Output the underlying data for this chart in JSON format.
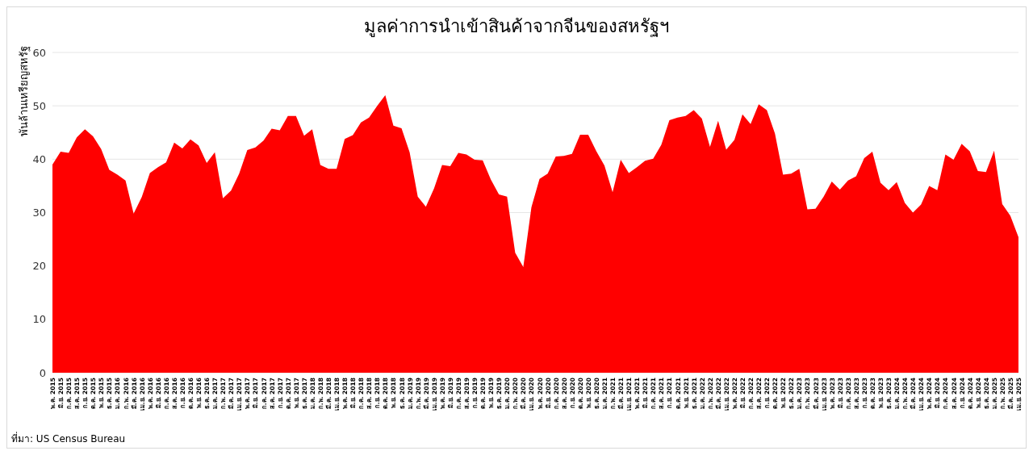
{
  "chart_data": {
    "type": "area",
    "title": "มูลค่าการนำเข้าสินค้าจากจีนของสหรัฐฯ",
    "ylabel": "พันล้านเหรียญสหรัฐ",
    "annotations": [
      "ที่มา: US Census Bureau"
    ],
    "categories": [
      "พ.ค. 2015",
      "มิ.ย. 2015",
      "ก.ค. 2015",
      "ส.ค. 2015",
      "ก.ย. 2015",
      "ต.ค. 2015",
      "พ.ย. 2015",
      "ธ.ค. 2015",
      "ม.ค. 2016",
      "ก.พ. 2016",
      "มี.ค. 2016",
      "เม.ย. 2016",
      "พ.ค. 2016",
      "มิ.ย. 2016",
      "ก.ค. 2016",
      "ส.ค. 2016",
      "ก.ย. 2016",
      "ต.ค. 2016",
      "พ.ย. 2016",
      "ธ.ค. 2016",
      "ม.ค. 2017",
      "ก.พ. 2017",
      "มี.ค. 2017",
      "เม.ย. 2017",
      "พ.ค. 2017",
      "มิ.ย. 2017",
      "ก.ค. 2017",
      "ส.ค. 2017",
      "ก.ย. 2017",
      "ต.ค. 2017",
      "พ.ย. 2017",
      "ธ.ค. 2017",
      "ม.ค. 2018",
      "ก.พ. 2018",
      "มี.ค. 2018",
      "เม.ย. 2018",
      "พ.ค. 2018",
      "มิ.ย. 2018",
      "ก.ค. 2018",
      "ส.ค. 2018",
      "ก.ย. 2018",
      "ต.ค. 2018",
      "พ.ย. 2018",
      "ธ.ค. 2018",
      "ม.ค. 2019",
      "ก.พ. 2019",
      "มี.ค. 2019",
      "เม.ย. 2019",
      "พ.ค. 2019",
      "มิ.ย. 2019",
      "ก.ค. 2019",
      "ส.ค. 2019",
      "ก.ย. 2019",
      "ต.ค. 2019",
      "พ.ย. 2019",
      "ธ.ค. 2019",
      "ม.ค. 2020",
      "ก.พ. 2020",
      "มี.ค. 2020",
      "เม.ย. 2020",
      "พ.ค. 2020",
      "มิ.ย. 2020",
      "ก.ค. 2020",
      "ส.ค. 2020",
      "ก.ย. 2020",
      "ต.ค. 2020",
      "พ.ย. 2020",
      "ธ.ค. 2020",
      "ม.ค. 2021",
      "ก.พ. 2021",
      "มี.ค. 2021",
      "เม.ย. 2021",
      "พ.ค. 2021",
      "มิ.ย. 2021",
      "ก.ค. 2021",
      "ส.ค. 2021",
      "ก.ย. 2021",
      "ต.ค. 2021",
      "พ.ย. 2021",
      "ธ.ค. 2021",
      "ม.ค. 2022",
      "ก.พ. 2022",
      "มี.ค. 2022",
      "เม.ย. 2022",
      "พ.ค. 2022",
      "มิ.ย. 2022",
      "ก.ค. 2022",
      "ส.ค. 2022",
      "ก.ย. 2022",
      "ต.ค. 2022",
      "พ.ย. 2022",
      "ธ.ค. 2022",
      "ม.ค. 2023",
      "ก.พ. 2023",
      "มี.ค. 2023",
      "เม.ย. 2023",
      "พ.ค. 2023",
      "มิ.ย. 2023",
      "ก.ค. 2023",
      "ส.ค. 2023",
      "ก.ย. 2023",
      "ต.ค. 2023",
      "พ.ย. 2023",
      "ธ.ค. 2023",
      "ม.ค. 2024",
      "ก.พ. 2024",
      "มี.ค. 2024",
      "เม.ย. 2024",
      "พ.ค. 2024",
      "มิ.ย. 2024",
      "ก.ค. 2024",
      "ส.ค. 2024",
      "ก.ย. 2024",
      "ต.ค. 2024",
      "พ.ย. 2024",
      "ธ.ค. 2024",
      "ม.ค. 2025",
      "ก.พ. 2025",
      "มี.ค. 2025",
      "เม.ย. 2025"
    ],
    "series": [
      {
        "color": "#ff0000",
        "values": [
          39.0,
          41.4,
          41.2,
          44.1,
          45.6,
          44.3,
          41.9,
          38.0,
          37.1,
          36.0,
          29.8,
          32.9,
          37.4,
          38.5,
          39.4,
          43.1,
          42.0,
          43.7,
          42.6,
          39.3,
          41.3,
          32.7,
          34.1,
          37.3,
          41.7,
          42.2,
          43.5,
          45.7,
          45.4,
          48.1,
          48.1,
          44.4,
          45.6,
          38.9,
          38.2,
          38.2,
          43.8,
          44.5,
          46.9,
          47.8,
          50.0,
          52.0,
          46.3,
          45.8,
          41.3,
          33.0,
          31.1,
          34.5,
          38.9,
          38.7,
          41.2,
          40.9,
          39.9,
          39.8,
          36.2,
          33.4,
          33.0,
          22.5,
          19.8,
          31.0,
          36.3,
          37.3,
          40.5,
          40.6,
          41.0,
          44.6,
          44.6,
          41.5,
          38.8,
          33.8,
          39.9,
          37.4,
          38.5,
          39.7,
          40.1,
          42.7,
          47.3,
          47.8,
          48.1,
          49.2,
          47.6,
          42.3,
          47.2,
          41.8,
          43.6,
          48.4,
          46.6,
          50.3,
          49.2,
          44.8,
          37.1,
          37.3,
          38.2,
          30.6,
          30.7,
          33.0,
          35.8,
          34.3,
          36.0,
          36.8,
          40.2,
          41.4,
          35.6,
          34.2,
          35.7,
          31.8,
          30.0,
          31.5,
          35.0,
          34.2,
          40.9,
          39.9,
          42.9,
          41.5,
          37.8,
          37.6,
          41.6,
          31.6,
          29.4,
          25.4
        ]
      }
    ],
    "ylim": [
      0,
      60
    ],
    "yticks": [
      0,
      10,
      20,
      30,
      40,
      50,
      60
    ],
    "grid": "y"
  }
}
